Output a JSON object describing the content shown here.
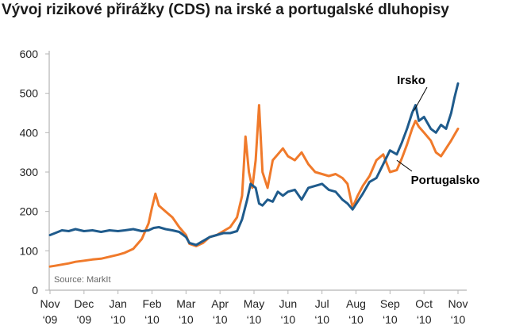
{
  "chart_data": {
    "type": "line",
    "title": "Vývoj rizikové přirážky (CDS) na irské a portugalské dluhopisy",
    "xlabel": "",
    "ylabel": "",
    "ylim": [
      0,
      600
    ],
    "yticks": [
      "0",
      "100",
      "200",
      "300",
      "400",
      "500",
      "600"
    ],
    "xticks": [
      {
        "month": "Nov",
        "year": "‘09"
      },
      {
        "month": "Dec",
        "year": "‘09"
      },
      {
        "month": "Jan",
        "year": "‘10"
      },
      {
        "month": "Feb",
        "year": "‘10"
      },
      {
        "month": "Mar",
        "year": "‘10"
      },
      {
        "month": "Apr",
        "year": "‘10"
      },
      {
        "month": "May",
        "year": "‘10"
      },
      {
        "month": "Jun",
        "year": "‘10"
      },
      {
        "month": "Jul",
        "year": "‘10"
      },
      {
        "month": "Aug",
        "year": "‘10"
      },
      {
        "month": "Sep",
        "year": "‘10"
      },
      {
        "month": "Oct",
        "year": "‘10"
      },
      {
        "month": "Nov",
        "year": "‘10"
      }
    ],
    "grid": false,
    "source": "Source: MarkIt",
    "series": [
      {
        "name": "Irsko",
        "color": "#1f5b8c",
        "x": [
          0,
          0.15,
          0.35,
          0.55,
          0.75,
          1.0,
          1.25,
          1.5,
          1.75,
          2.0,
          2.2,
          2.45,
          2.7,
          2.9,
          3.05,
          3.2,
          3.4,
          3.6,
          3.8,
          4.0,
          4.1,
          4.3,
          4.5,
          4.7,
          4.9,
          5.1,
          5.3,
          5.5,
          5.65,
          5.8,
          5.9,
          6.05,
          6.15,
          6.25,
          6.4,
          6.55,
          6.7,
          6.85,
          7.0,
          7.2,
          7.4,
          7.6,
          7.8,
          8.0,
          8.2,
          8.4,
          8.6,
          8.75,
          8.9,
          9.05,
          9.2,
          9.4,
          9.6,
          9.8,
          10.0,
          10.2,
          10.35,
          10.5,
          10.65,
          10.75,
          10.85,
          11.0,
          11.2,
          11.35,
          11.5,
          11.65,
          11.8,
          11.9,
          12.0
        ],
        "values": [
          140,
          145,
          152,
          150,
          155,
          150,
          152,
          148,
          152,
          150,
          152,
          155,
          150,
          152,
          158,
          160,
          155,
          152,
          148,
          135,
          120,
          115,
          125,
          135,
          140,
          145,
          145,
          150,
          180,
          230,
          270,
          260,
          220,
          215,
          230,
          225,
          250,
          240,
          250,
          255,
          230,
          260,
          265,
          270,
          255,
          250,
          230,
          220,
          205,
          225,
          245,
          275,
          285,
          320,
          355,
          345,
          375,
          410,
          450,
          470,
          430,
          440,
          410,
          400,
          420,
          410,
          450,
          490,
          525
        ]
      },
      {
        "name": "Portugalsko",
        "color": "#f07a2b",
        "x": [
          0,
          0.15,
          0.35,
          0.55,
          0.75,
          1.0,
          1.25,
          1.5,
          1.75,
          2.0,
          2.2,
          2.45,
          2.7,
          2.9,
          3.0,
          3.1,
          3.2,
          3.4,
          3.6,
          3.8,
          4.0,
          4.1,
          4.3,
          4.5,
          4.7,
          4.9,
          5.1,
          5.3,
          5.5,
          5.65,
          5.75,
          5.85,
          5.95,
          6.05,
          6.15,
          6.25,
          6.4,
          6.55,
          6.7,
          6.85,
          7.0,
          7.2,
          7.4,
          7.6,
          7.8,
          8.0,
          8.2,
          8.4,
          8.6,
          8.75,
          8.9,
          9.05,
          9.2,
          9.4,
          9.6,
          9.8,
          10.0,
          10.2,
          10.35,
          10.5,
          10.65,
          10.75,
          10.85,
          11.0,
          11.2,
          11.35,
          11.5,
          11.65,
          11.8,
          11.9,
          12.0
        ],
        "values": [
          60,
          62,
          65,
          68,
          72,
          75,
          78,
          80,
          85,
          90,
          95,
          105,
          130,
          170,
          210,
          245,
          215,
          200,
          185,
          160,
          140,
          118,
          112,
          120,
          135,
          140,
          150,
          160,
          185,
          240,
          390,
          300,
          260,
          330,
          470,
          300,
          260,
          330,
          345,
          360,
          340,
          330,
          350,
          320,
          300,
          295,
          290,
          295,
          285,
          270,
          210,
          240,
          265,
          290,
          330,
          345,
          300,
          305,
          335,
          370,
          410,
          430,
          415,
          400,
          380,
          350,
          340,
          360,
          380,
          395,
          410
        ]
      }
    ],
    "annotations": [
      "Irsko",
      "Portugalsko"
    ]
  }
}
